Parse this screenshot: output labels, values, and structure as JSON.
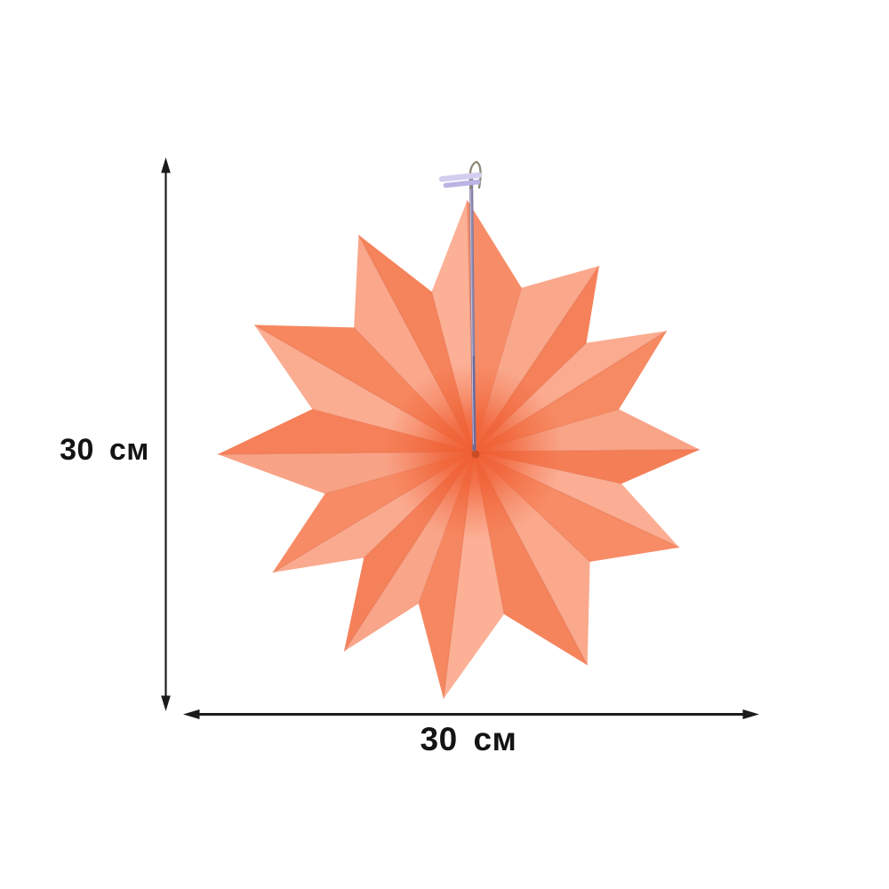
{
  "dimensions": {
    "height_label": "30 см",
    "width_label": "30 см",
    "arrow_color": "#1B1B1B",
    "label_color": "#141414"
  },
  "figure": {
    "name": "paper-fan-star",
    "points": 12,
    "colors": {
      "light_halves": [
        "#FCB096",
        "#FAA88C",
        "#FBAB90",
        "#F9A487",
        "#FBAE93",
        "#FAA98D",
        "#FCB197",
        "#F9A589",
        "#FAAA8F",
        "#F8A286",
        "#FBAD92",
        "#FAA78B"
      ],
      "dark_halves": [
        "#F78D68",
        "#F5815A",
        "#F68A63",
        "#F47F57",
        "#F78C66",
        "#F5845D",
        "#F68861",
        "#F4815A",
        "#F78B65",
        "#F58059",
        "#F6875F",
        "#F5835B"
      ],
      "center_hot": "#EF5C30",
      "center_dot": "#C44A24",
      "crease": "rgba(216,88,52,0.30)",
      "cord": "#8E87AC",
      "cord_dark": "#6F6896",
      "cord_edge": "#7D7699",
      "cord_highlight": "#D5D0EA",
      "clip_top": "#D3CDEF",
      "clip_bottom": "#BBB3E3",
      "hook": "#8F8878"
    }
  }
}
